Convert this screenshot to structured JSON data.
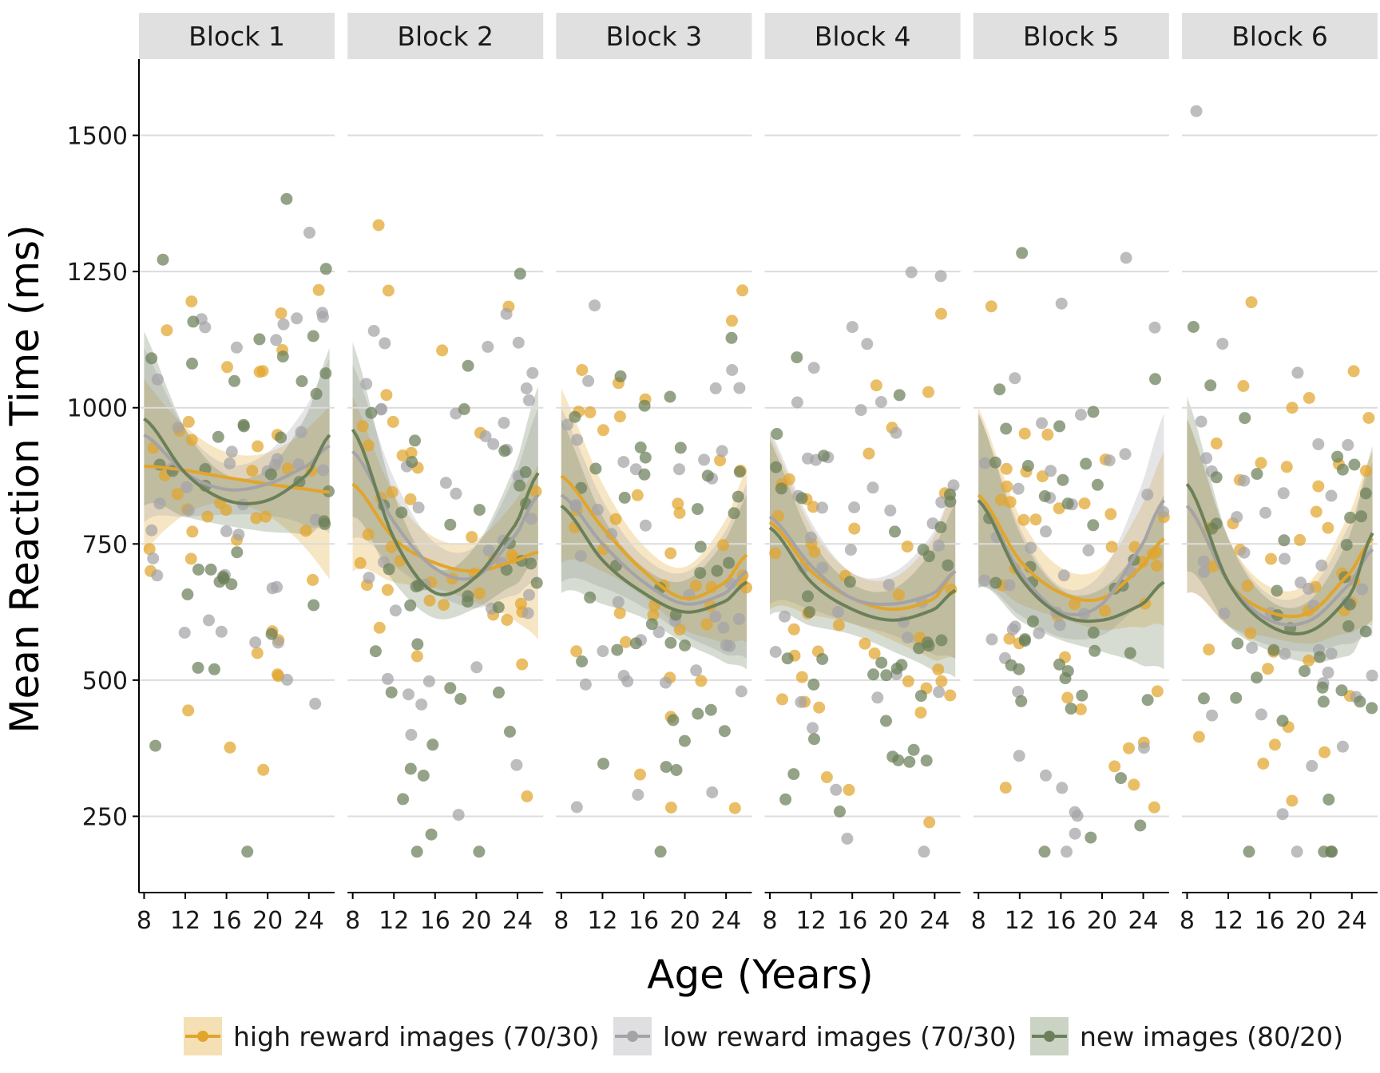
{
  "chart_data": {
    "type": "scatter",
    "facets": [
      "Block 1",
      "Block 2",
      "Block 3",
      "Block 4",
      "Block 5",
      "Block 6"
    ],
    "xlabel": "Age (Years)",
    "ylabel": "Mean Reaction Time (ms)",
    "xlim": [
      7.5,
      26.5
    ],
    "ylim": [
      110,
      1640
    ],
    "x_ticks": [
      8,
      12,
      16,
      20,
      24
    ],
    "y_ticks": [
      250,
      500,
      750,
      1000,
      1250,
      1500
    ],
    "grid": "horizontal major",
    "legend_position": "bottom",
    "series_colors": {
      "high reward images (70/30)": "#E2A52B",
      "low reward images (70/30)": "#A3A3A8",
      "new images (80/20)": "#6B8059"
    },
    "legend": [
      {
        "label": "high reward images (70/30)",
        "color": "#E2A52B"
      },
      {
        "label": "low reward images (70/30)",
        "color": "#A3A3A8"
      },
      {
        "label": "new images (80/20)",
        "color": "#6B8059"
      }
    ],
    "trend_lines": [
      {
        "facet": "Block 1",
        "series": [
          {
            "name": "high reward images (70/30)",
            "age": [
              8,
              12,
              16,
              20,
              24,
              26
            ],
            "rt": [
              893,
              885,
              872,
              860,
              850,
              845
            ]
          },
          {
            "name": "low reward images (70/30)",
            "age": [
              8,
              12,
              16,
              20,
              24,
              26
            ],
            "rt": [
              950,
              880,
              850,
              860,
              895,
              930
            ]
          },
          {
            "name": "new images (80/20)",
            "age": [
              8,
              12,
              16,
              20,
              24,
              26
            ],
            "rt": [
              980,
              880,
              830,
              830,
              880,
              950
            ]
          }
        ]
      },
      {
        "facet": "Block 2",
        "series": [
          {
            "name": "high reward images (70/30)",
            "age": [
              8,
              12,
              16,
              20,
              24,
              26
            ],
            "rt": [
              860,
              760,
              715,
              700,
              720,
              735
            ]
          },
          {
            "name": "low reward images (70/30)",
            "age": [
              8,
              12,
              16,
              20,
              24,
              26
            ],
            "rt": [
              920,
              790,
              705,
              690,
              770,
              840
            ]
          },
          {
            "name": "new images (80/20)",
            "age": [
              8,
              12,
              16,
              20,
              24,
              26
            ],
            "rt": [
              960,
              760,
              660,
              690,
              790,
              880
            ]
          }
        ]
      },
      {
        "facet": "Block 3",
        "series": [
          {
            "name": "high reward images (70/30)",
            "age": [
              8,
              12,
              16,
              20,
              24,
              26
            ],
            "rt": [
              875,
              780,
              700,
              650,
              680,
              730
            ]
          },
          {
            "name": "low reward images (70/30)",
            "age": [
              8,
              12,
              16,
              20,
              24,
              26
            ],
            "rt": [
              840,
              750,
              680,
              640,
              660,
              700
            ]
          },
          {
            "name": "new images (80/20)",
            "age": [
              8,
              12,
              16,
              20,
              24,
              26
            ],
            "rt": [
              820,
              720,
              660,
              625,
              645,
              680
            ]
          }
        ]
      },
      {
        "facet": "Block 4",
        "series": [
          {
            "name": "high reward images (70/30)",
            "age": [
              8,
              12,
              16,
              20,
              24,
              26
            ],
            "rt": [
              790,
              700,
              650,
              630,
              650,
              700
            ]
          },
          {
            "name": "low reward images (70/30)",
            "age": [
              8,
              12,
              16,
              20,
              24,
              26
            ],
            "rt": [
              800,
              710,
              650,
              640,
              660,
              700
            ]
          },
          {
            "name": "new images (80/20)",
            "age": [
              8,
              12,
              16,
              20,
              24,
              26
            ],
            "rt": [
              780,
              680,
              630,
              610,
              630,
              665
            ]
          }
        ]
      },
      {
        "facet": "Block 5",
        "series": [
          {
            "name": "high reward images (70/30)",
            "age": [
              8,
              12,
              16,
              20,
              24,
              26
            ],
            "rt": [
              840,
              720,
              660,
              650,
              710,
              760
            ]
          },
          {
            "name": "low reward images (70/30)",
            "age": [
              8,
              12,
              16,
              20,
              24,
              26
            ],
            "rt": [
              830,
              700,
              625,
              640,
              750,
              830
            ]
          },
          {
            "name": "new images (80/20)",
            "age": [
              8,
              12,
              16,
              20,
              24,
              26
            ],
            "rt": [
              830,
              690,
              620,
              610,
              640,
              680
            ]
          }
        ]
      },
      {
        "facet": "Block 6",
        "series": [
          {
            "name": "high reward images (70/30)",
            "age": [
              8,
              12,
              16,
              20,
              24,
              26
            ],
            "rt": [
              820,
              680,
              625,
              625,
              700,
              760
            ]
          },
          {
            "name": "low reward images (70/30)",
            "age": [
              8,
              12,
              16,
              20,
              24,
              26
            ],
            "rt": [
              820,
              680,
              610,
              610,
              680,
              740
            ]
          },
          {
            "name": "new images (80/20)",
            "age": [
              8,
              12,
              16,
              20,
              24,
              26
            ],
            "rt": [
              860,
              680,
              600,
              590,
              660,
              770
            ]
          }
        ]
      }
    ]
  }
}
